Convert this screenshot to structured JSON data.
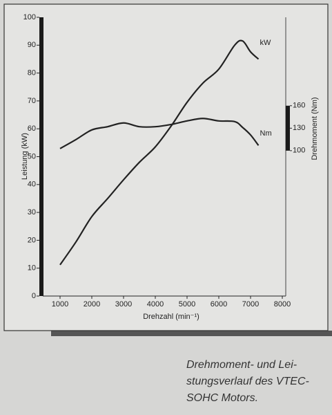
{
  "chart_data": {
    "type": "line",
    "ylabel": "Leistung (kW)",
    "y2label": "Drehmoment (Nm)",
    "xlabel": "Drehzahl (min⁻¹)",
    "caption": [
      "Drehmoment- und Lei-",
      "stungsverlauf des VTEC-",
      "SOHC Motors."
    ],
    "x": [
      1000,
      1500,
      2000,
      2500,
      3000,
      3500,
      4000,
      4500,
      5000,
      5500,
      6000,
      6500,
      6750,
      7000,
      7250
    ],
    "series": [
      {
        "name": "kW",
        "color": "#222222",
        "values": [
          11.2,
          19.4,
          28.5,
          35,
          41.7,
          48,
          53.5,
          61,
          69.5,
          76.4,
          81.4,
          90,
          91.5,
          87.6,
          85
        ]
      },
      {
        "name": "Nm",
        "color": "#222222",
        "axis": "y2",
        "values": [
          102.8,
          114.8,
          127.7,
          132,
          137,
          132,
          132,
          135,
          139.7,
          143,
          139.7,
          138.8,
          131,
          121,
          107
        ]
      }
    ],
    "xlim": [
      500,
      8000
    ],
    "xticks": [
      1000,
      2000,
      3000,
      4000,
      5000,
      6000,
      7000,
      8000
    ],
    "ylim": [
      0,
      100
    ],
    "yticks": [
      0,
      10,
      20,
      30,
      40,
      50,
      60,
      70,
      80,
      90,
      100
    ],
    "y2lim": [
      -94,
      278
    ],
    "y2ticks": [
      100,
      130,
      160
    ]
  }
}
